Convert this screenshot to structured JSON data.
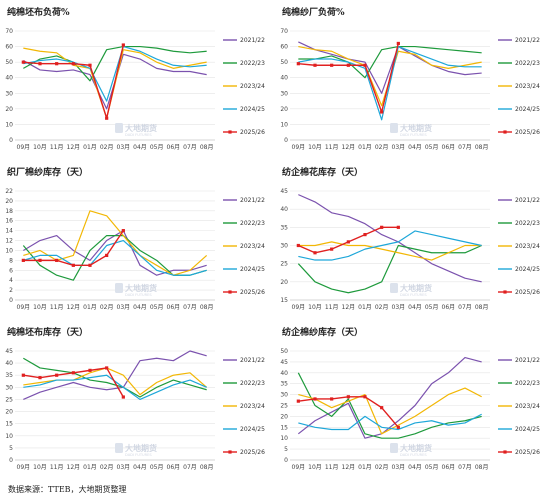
{
  "watermark": {
    "title": "大地期货",
    "subtitle": "DADI FUTURES"
  },
  "source": "数据来源：TTEB，大地期货整理",
  "series_colors": {
    "2021/22": "#7b52ae",
    "2022/23": "#1e9a3c",
    "2023/24": "#f2b705",
    "2024/25": "#1ea7d9",
    "2025/26": "#e02020"
  },
  "chart_data": [
    {
      "type": "line",
      "title": "纯棉坯布负荷%",
      "xlabel": "",
      "ylabel": "",
      "x": [
        "09月",
        "10月",
        "11月",
        "12月",
        "01月",
        "02月",
        "03月",
        "04月",
        "05月",
        "06月",
        "07月",
        "08月"
      ],
      "ylim": [
        0,
        70
      ],
      "yticks": [
        0,
        10,
        20,
        30,
        40,
        50,
        60,
        70
      ],
      "legend": "right",
      "series": [
        {
          "name": "2021/22",
          "values": [
            51,
            45,
            44,
            45,
            42,
            20,
            55,
            52,
            46,
            44,
            44,
            42
          ]
        },
        {
          "name": "2022/23",
          "values": [
            46,
            52,
            54,
            50,
            38,
            58,
            60,
            60,
            59,
            57,
            56,
            57
          ]
        },
        {
          "name": "2023/24",
          "values": [
            59,
            57,
            56,
            48,
            46,
            14,
            58,
            56,
            50,
            46,
            48,
            50
          ]
        },
        {
          "name": "2024/25",
          "values": [
            49,
            51,
            52,
            50,
            46,
            25,
            60,
            57,
            52,
            48,
            47,
            48
          ]
        },
        {
          "name": "2025/26",
          "values": [
            50,
            49,
            49,
            49,
            48,
            14,
            61,
            null,
            null,
            null,
            null,
            null
          ]
        }
      ]
    },
    {
      "type": "line",
      "title": "纯棉纱厂负荷%",
      "xlabel": "",
      "ylabel": "",
      "x": [
        "09月",
        "10月",
        "11月",
        "12月",
        "01月",
        "02月",
        "03月",
        "04月",
        "05月",
        "06月",
        "07月",
        "08月"
      ],
      "ylim": [
        0,
        70
      ],
      "yticks": [
        0,
        10,
        20,
        30,
        40,
        50,
        60,
        70
      ],
      "legend": "right",
      "series": [
        {
          "name": "2021/22",
          "values": [
            63,
            58,
            55,
            52,
            50,
            30,
            60,
            54,
            48,
            44,
            42,
            43
          ]
        },
        {
          "name": "2022/23",
          "values": [
            52,
            52,
            54,
            50,
            40,
            58,
            60,
            60,
            59,
            58,
            57,
            56
          ]
        },
        {
          "name": "2023/24",
          "values": [
            60,
            58,
            57,
            52,
            48,
            22,
            57,
            55,
            48,
            46,
            48,
            50
          ]
        },
        {
          "name": "2024/25",
          "values": [
            50,
            52,
            52,
            50,
            46,
            13,
            60,
            56,
            52,
            48,
            47,
            47
          ]
        },
        {
          "name": "2025/26",
          "values": [
            49,
            48,
            48,
            48,
            48,
            18,
            62,
            null,
            null,
            null,
            null,
            null
          ]
        }
      ]
    },
    {
      "type": "line",
      "title": "织厂棉纱库存（天）",
      "xlabel": "",
      "ylabel": "",
      "x": [
        "09月",
        "10月",
        "11月",
        "12月",
        "01月",
        "02月",
        "03月",
        "04月",
        "05月",
        "06月",
        "07月",
        "08月"
      ],
      "ylim": [
        0,
        22
      ],
      "yticks": [
        0,
        2,
        4,
        6,
        8,
        10,
        12,
        14,
        16,
        18,
        20,
        22
      ],
      "legend": "right",
      "series": [
        {
          "name": "2021/22",
          "values": [
            10,
            12,
            13,
            10,
            8,
            12,
            14,
            7,
            5,
            6,
            6,
            7
          ]
        },
        {
          "name": "2022/23",
          "values": [
            11,
            7,
            5,
            4,
            10,
            13,
            13,
            10,
            8,
            5,
            5,
            6
          ]
        },
        {
          "name": "2023/24",
          "values": [
            9,
            10,
            8,
            9,
            18,
            17,
            13,
            9,
            7,
            5,
            6,
            9
          ]
        },
        {
          "name": "2024/25",
          "values": [
            8,
            9,
            9,
            7,
            7,
            11,
            12,
            9,
            6,
            5,
            5,
            6
          ]
        },
        {
          "name": "2025/26",
          "values": [
            8,
            8,
            8,
            7,
            7,
            9,
            14,
            null,
            null,
            null,
            null,
            null
          ]
        }
      ]
    },
    {
      "type": "line",
      "title": "纺企棉花库存（天）",
      "xlabel": "",
      "ylabel": "",
      "x": [
        "09月",
        "10月",
        "11月",
        "12月",
        "01月",
        "02月",
        "03月",
        "04月",
        "05月",
        "06月",
        "07月",
        "08月"
      ],
      "ylim": [
        15,
        45
      ],
      "yticks": [
        15,
        20,
        25,
        30,
        35,
        40,
        45
      ],
      "legend": "right",
      "series": [
        {
          "name": "2021/22",
          "values": [
            44,
            42,
            39,
            38,
            36,
            33,
            31,
            28,
            25,
            23,
            21,
            20
          ]
        },
        {
          "name": "2022/23",
          "values": [
            25,
            20,
            18,
            17,
            18,
            20,
            30,
            29,
            28,
            28,
            28,
            30
          ]
        },
        {
          "name": "2023/24",
          "values": [
            30,
            30,
            31,
            30,
            30,
            29,
            28,
            27,
            26,
            28,
            30,
            30
          ]
        },
        {
          "name": "2024/25",
          "values": [
            27,
            26,
            26,
            27,
            29,
            30,
            31,
            34,
            33,
            32,
            31,
            30
          ]
        },
        {
          "name": "2025/26",
          "values": [
            30,
            28,
            29,
            31,
            33,
            35,
            35,
            null,
            null,
            null,
            null,
            null
          ]
        }
      ]
    },
    {
      "type": "line",
      "title": "纯棉坯布库存（天）",
      "xlabel": "",
      "ylabel": "",
      "x": [
        "09月",
        "10月",
        "11月",
        "12月",
        "01月",
        "02月",
        "03月",
        "04月",
        "05月",
        "06月",
        "07月",
        "08月"
      ],
      "ylim": [
        0,
        45
      ],
      "yticks": [
        0,
        5,
        10,
        15,
        20,
        25,
        30,
        35,
        40,
        45
      ],
      "legend": "right",
      "series": [
        {
          "name": "2021/22",
          "values": [
            25,
            28,
            30,
            32,
            30,
            29,
            30,
            41,
            42,
            41,
            45,
            43
          ]
        },
        {
          "name": "2022/23",
          "values": [
            42,
            38,
            37,
            36,
            33,
            32,
            30,
            26,
            30,
            33,
            31,
            29
          ]
        },
        {
          "name": "2023/24",
          "values": [
            31,
            32,
            33,
            33,
            36,
            38,
            35,
            27,
            32,
            35,
            36,
            30
          ]
        },
        {
          "name": "2024/25",
          "values": [
            30,
            31,
            33,
            33,
            34,
            35,
            30,
            25,
            28,
            31,
            33,
            30
          ]
        },
        {
          "name": "2025/26",
          "values": [
            35,
            34,
            35,
            36,
            37,
            38,
            26,
            null,
            null,
            null,
            null,
            null
          ]
        }
      ]
    },
    {
      "type": "line",
      "title": "纺企棉纱库存（天）",
      "xlabel": "",
      "ylabel": "",
      "x": [
        "09月",
        "10月",
        "11月",
        "12月",
        "01月",
        "02月",
        "03月",
        "04月",
        "05月",
        "06月",
        "07月",
        "08月"
      ],
      "ylim": [
        0,
        50
      ],
      "yticks": [
        0,
        5,
        10,
        15,
        20,
        25,
        30,
        35,
        40,
        45,
        50
      ],
      "legend": "right",
      "series": [
        {
          "name": "2021/22",
          "values": [
            12,
            18,
            22,
            26,
            10,
            12,
            18,
            25,
            35,
            40,
            47,
            45
          ]
        },
        {
          "name": "2022/23",
          "values": [
            40,
            25,
            20,
            28,
            12,
            10,
            10,
            12,
            15,
            17,
            18,
            20
          ]
        },
        {
          "name": "2023/24",
          "values": [
            30,
            28,
            24,
            27,
            30,
            12,
            16,
            20,
            25,
            30,
            33,
            29
          ]
        },
        {
          "name": "2024/25",
          "values": [
            17,
            15,
            14,
            14,
            20,
            15,
            14,
            17,
            18,
            16,
            17,
            21
          ]
        },
        {
          "name": "2025/26",
          "values": [
            27,
            28,
            28,
            29,
            29,
            24,
            15,
            null,
            null,
            null,
            null,
            null
          ]
        }
      ]
    }
  ]
}
